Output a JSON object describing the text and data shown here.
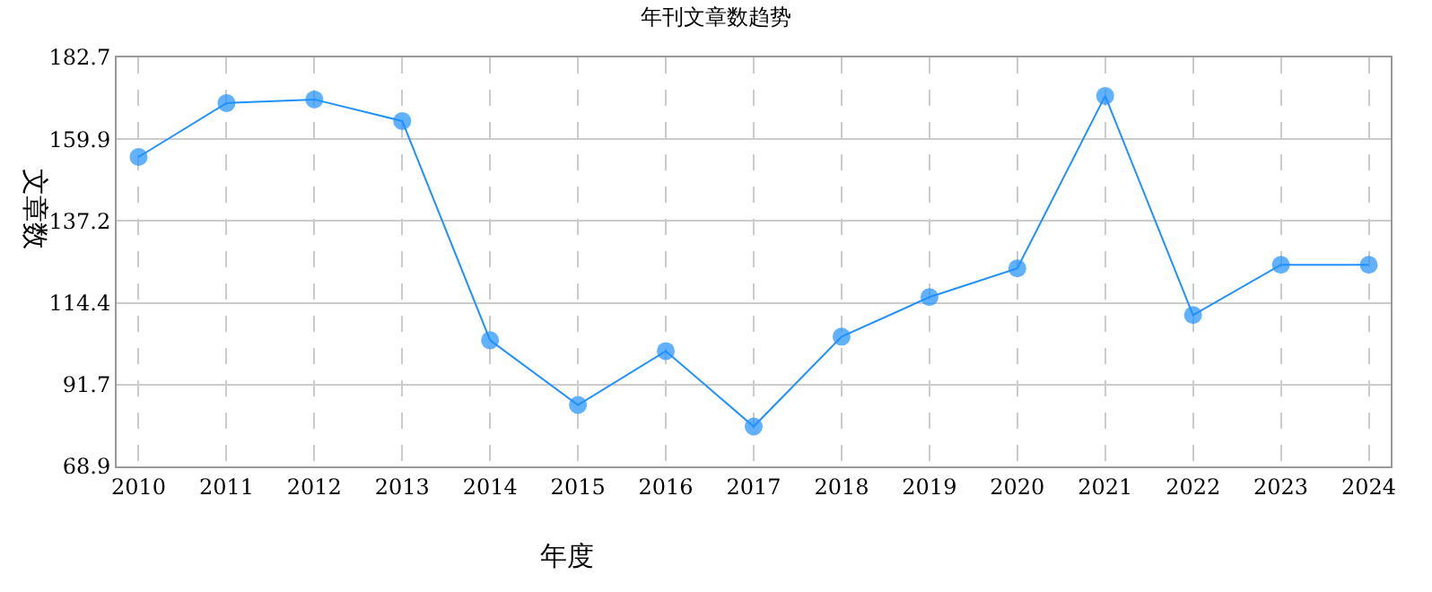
{
  "chart_data": {
    "type": "line",
    "title": "年刊文章数趋势",
    "xlabel": "年度",
    "ylabel": "文章数",
    "categories": [
      "2010",
      "2011",
      "2012",
      "2013",
      "2014",
      "2015",
      "2016",
      "2017",
      "2018",
      "2019",
      "2020",
      "2021",
      "2022",
      "2023",
      "2024"
    ],
    "series": [
      {
        "color": "#1e90ff",
        "values": [
          155,
          170,
          171,
          165,
          104,
          86,
          101,
          80,
          105,
          116,
          124,
          172,
          111,
          125,
          125
        ]
      }
    ],
    "ylim": [
      68.9,
      182.7
    ],
    "yticks": [
      68.9,
      91.7,
      114.4,
      137.2,
      159.9,
      182.7
    ],
    "grid": true,
    "marker": "circle",
    "line_style": "solid",
    "legend": false
  }
}
